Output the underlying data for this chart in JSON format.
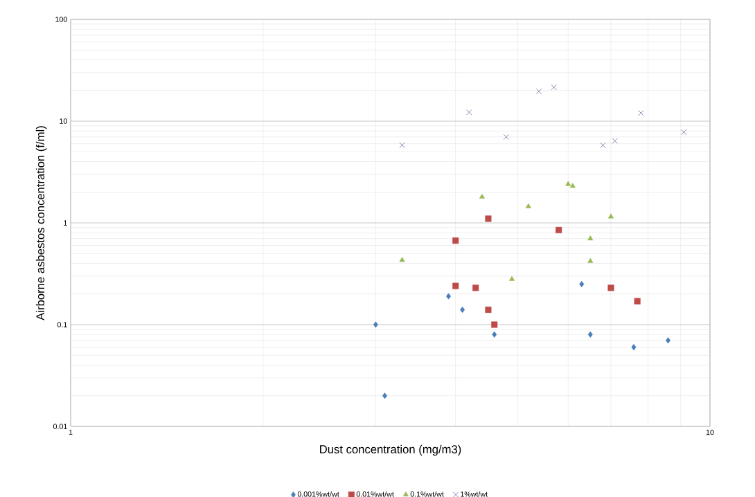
{
  "chart_data": {
    "type": "scatter",
    "xlabel": "Dust concentration (mg/m3)",
    "ylabel": "Airborne asbestos concentration (f/ml)",
    "log": "xy",
    "grid": true,
    "legend": "bottom",
    "xlim": [
      1,
      10
    ],
    "xticks": [
      1,
      10
    ],
    "ylim": [
      0.01,
      100
    ],
    "yticks": [
      0.01,
      0.1,
      1,
      10,
      100
    ],
    "series": [
      {
        "name": "0.001%wt/wt",
        "color": "#4a7ebb",
        "marker": "diamond",
        "x": [
          3.0,
          3.1,
          3.9,
          4.1,
          4.6,
          6.3,
          6.5,
          7.6,
          8.6
        ],
        "values": [
          0.1,
          0.02,
          0.19,
          0.14,
          0.08,
          0.25,
          0.08,
          0.06,
          0.07
        ]
      },
      {
        "name": "0.01%wt/wt",
        "color": "#be4b48",
        "marker": "square",
        "x": [
          4.0,
          4.0,
          4.3,
          4.5,
          4.5,
          4.6,
          5.8,
          7.0,
          7.7
        ],
        "values": [
          0.67,
          0.24,
          0.23,
          1.1,
          0.14,
          0.1,
          0.85,
          0.23,
          0.17
        ]
      },
      {
        "name": "0.1%wt/wt",
        "color": "#98b954",
        "marker": "triangle",
        "x": [
          3.3,
          4.4,
          4.9,
          5.2,
          6.0,
          6.1,
          6.5,
          6.5,
          7.0
        ],
        "values": [
          0.43,
          1.8,
          0.28,
          1.45,
          2.4,
          2.3,
          0.7,
          0.42,
          1.15
        ]
      },
      {
        "name": "1%wt/wt",
        "color": "#7d60a0",
        "marker": "cross",
        "x": [
          3.3,
          4.2,
          4.8,
          5.4,
          5.7,
          6.8,
          7.1,
          7.8,
          9.1
        ],
        "values": [
          5.8,
          12.2,
          7.0,
          19.6,
          21.5,
          5.8,
          6.4,
          12,
          7.8
        ]
      }
    ]
  }
}
